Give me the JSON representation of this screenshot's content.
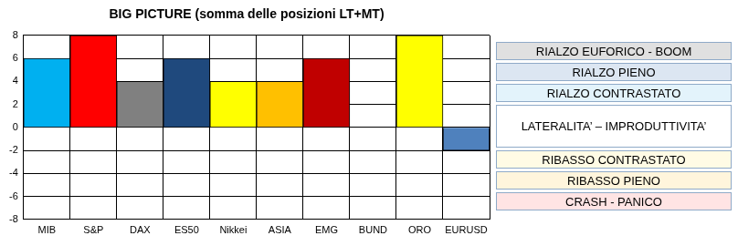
{
  "chart_data": {
    "type": "bar",
    "title": "BIG PICTURE (somma delle posizioni LT+MT)",
    "categories": [
      "MIB",
      "S&P",
      "DAX",
      "ES50",
      "Nikkei",
      "ASIA",
      "EMG",
      "BUND",
      "ORO",
      "EURUSD"
    ],
    "values": [
      6,
      8,
      4,
      6,
      4,
      4,
      6,
      0,
      8,
      -2
    ],
    "colors": [
      "#00b0f0",
      "#ff0000",
      "#808080",
      "#1f497d",
      "#ffff00",
      "#ffc000",
      "#c00000",
      "#ffffff",
      "#ffff00",
      "#4f81bd"
    ],
    "ylim": [
      -8,
      8
    ],
    "yticks": [
      -8,
      -6,
      -4,
      -2,
      0,
      2,
      4,
      6,
      8
    ],
    "grid": true,
    "annotations": [
      "RIALZO EUFORICO - BOOM",
      "RIALZO PIENO",
      "RIALZO CONTRASTATO",
      "LATERALITA’ – IMPRODUTTIVITA’",
      "RIBASSO CONTRASTATO",
      "RIBASSO PIENO",
      "CRASH - PANICO"
    ]
  }
}
